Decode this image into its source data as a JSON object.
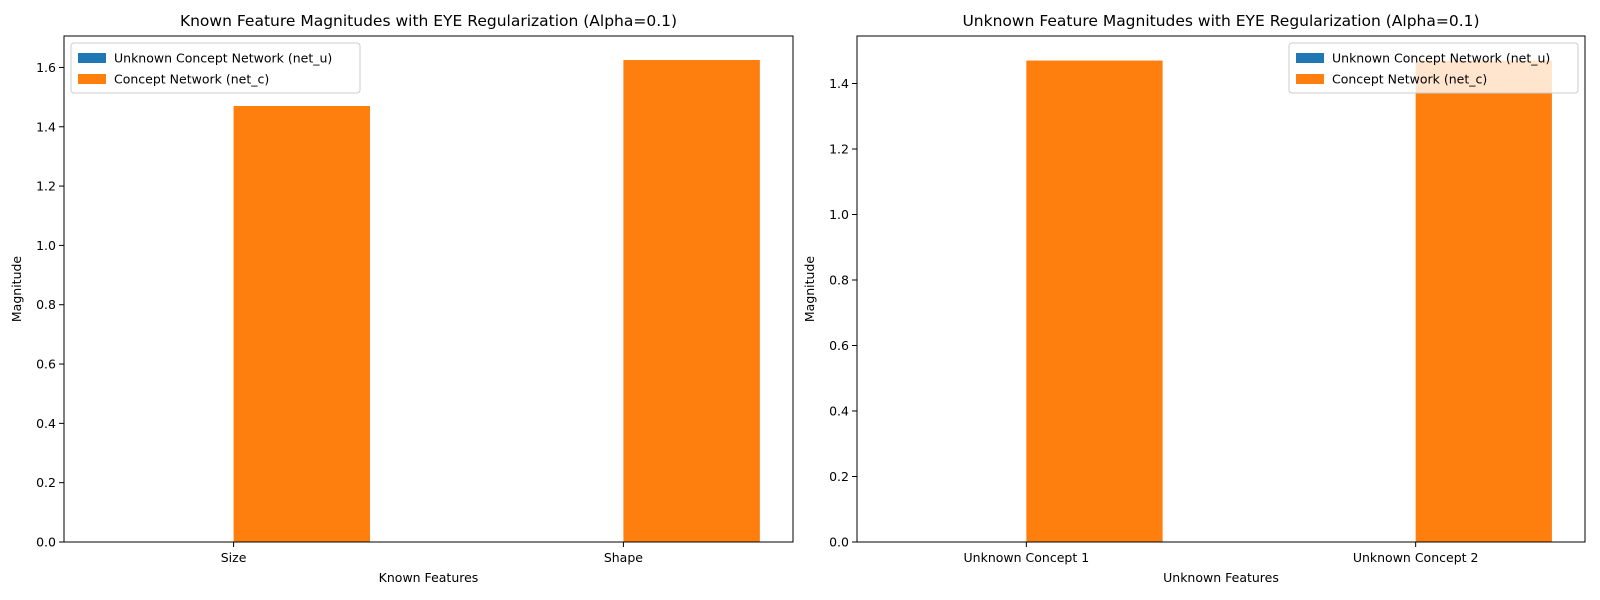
{
  "chart_data": [
    {
      "type": "bar",
      "title": "Known Feature Magnitudes with EYE Regularization (Alpha=0.1)",
      "xlabel": "Known Features",
      "ylabel": "Magnitude",
      "categories": [
        "Size",
        "Shape"
      ],
      "series": [
        {
          "name": "Unknown Concept Network (net_u)",
          "color": "#1f77b4",
          "values": [
            0,
            0
          ]
        },
        {
          "name": "Concept Network (net_c)",
          "color": "#ff7f0e",
          "values": [
            1.47,
            1.625
          ]
        }
      ],
      "ylim": [
        0,
        1.706
      ],
      "yticks": [
        "0.0",
        "0.2",
        "0.4",
        "0.6",
        "0.8",
        "1.0",
        "1.2",
        "1.4",
        "1.6"
      ],
      "grid": false,
      "legend": "upper left"
    },
    {
      "type": "bar",
      "title": "Unknown Feature Magnitudes with EYE Regularization (Alpha=0.1)",
      "xlabel": "Unknown Features",
      "ylabel": "Magnitude",
      "categories": [
        "Unknown Concept 1",
        "Unknown Concept 2"
      ],
      "series": [
        {
          "name": "Unknown Concept Network (net_u)",
          "color": "#1f77b4",
          "values": [
            0,
            0
          ]
        },
        {
          "name": "Concept Network (net_c)",
          "color": "#ff7f0e",
          "values": [
            1.47,
            1.47
          ]
        }
      ],
      "ylim": [
        0,
        1.545
      ],
      "yticks": [
        "0.0",
        "0.2",
        "0.4",
        "0.6",
        "0.8",
        "1.0",
        "1.2",
        "1.4"
      ],
      "grid": false,
      "legend": "upper right"
    }
  ]
}
